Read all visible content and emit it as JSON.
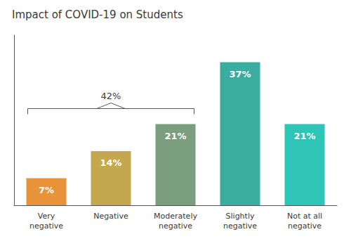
{
  "chart_data": {
    "type": "bar",
    "title": "Impact of COVID-19 on Students",
    "categories": [
      "Very\nnegative",
      "Negative",
      "Moderately\nnegative",
      "Slightly\nnegative",
      "Not at all\nnegative"
    ],
    "values": [
      7,
      14,
      21,
      37,
      21
    ],
    "value_labels": [
      "7%",
      "14%",
      "21%",
      "37%",
      "21%"
    ],
    "colors": [
      "#E8923A",
      "#C4A84F",
      "#7A9E7E",
      "#3AADA0",
      "#2EC4B6"
    ],
    "data_labels": true,
    "ylim": [
      0,
      44
    ],
    "tick_labels": "x",
    "grid": false,
    "annotations": [
      {
        "text": "42%",
        "span": [
          "Very\nnegative",
          "Moderately\nnegative"
        ]
      }
    ]
  }
}
